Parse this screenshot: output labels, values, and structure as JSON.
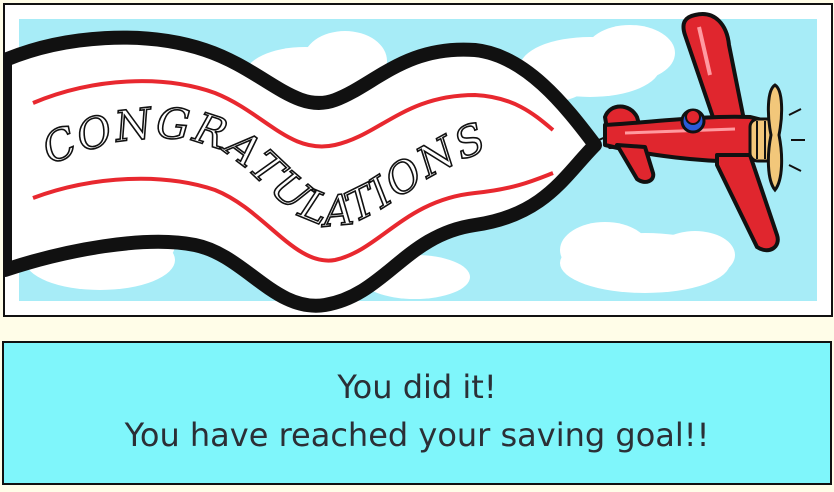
{
  "banner": {
    "text": "CONGRATULATIONS"
  },
  "message": {
    "line1": "You did it!",
    "line2": "You have reached your saving goal!!"
  },
  "colors": {
    "sky": "#a7ecf7",
    "cloud": "#ffffff",
    "plane_red": "#e0262e",
    "stripe_red": "#e8282f",
    "message_bg": "#7ff6fb",
    "page_bg": "#fffde8"
  }
}
